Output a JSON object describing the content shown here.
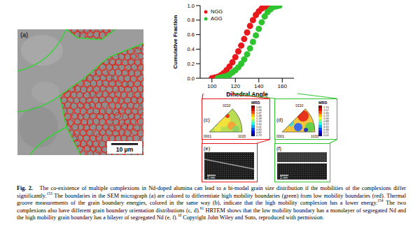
{
  "chart_data": {
    "type": "scatter",
    "x_label": "Dihedral Angle",
    "y_label": "Cumulative Fraction",
    "xlim": [
      90,
      170
    ],
    "xticks": [
      100,
      120,
      140,
      160
    ],
    "ylim": [
      0,
      1
    ],
    "yticks": [
      {
        "value": 0,
        "label": "0.0"
      },
      0.2,
      0.4,
      0.6,
      0.8,
      {
        "value": 1,
        "label": "1.0"
      }
    ],
    "grid": false,
    "legend": "upper left",
    "marker": "circle",
    "series": [
      {
        "name": "NGG",
        "color": "#e8191c",
        "x": [
          100,
          102.5,
          105,
          107.5,
          110,
          112.5,
          115,
          117.5,
          120,
          122.5,
          125,
          127.5,
          130,
          132.5,
          135,
          137.5,
          140,
          142.5,
          145,
          147.5,
          150
        ],
        "values": [
          0.0,
          0.01,
          0.02,
          0.04,
          0.07,
          0.11,
          0.16,
          0.22,
          0.29,
          0.37,
          0.45,
          0.54,
          0.63,
          0.72,
          0.8,
          0.87,
          0.92,
          0.96,
          0.98,
          0.99,
          1.0
        ]
      },
      {
        "name": "AGG",
        "color": "#2fc42f",
        "x": [
          105,
          107.5,
          110,
          112.5,
          115,
          117.5,
          120,
          122.5,
          125,
          127.5,
          130,
          132.5,
          135,
          137.5,
          140,
          142.5,
          145,
          147.5,
          150,
          152.5,
          155,
          157.5
        ],
        "values": [
          0.0,
          0.01,
          0.02,
          0.03,
          0.05,
          0.08,
          0.11,
          0.15,
          0.2,
          0.26,
          0.33,
          0.41,
          0.5,
          0.59,
          0.68,
          0.77,
          0.85,
          0.91,
          0.95,
          0.98,
          0.99,
          1.0
        ]
      }
    ]
  },
  "panels": {
    "a": {
      "label": "(a)",
      "scale_bar": "10 μm"
    },
    "c": {
      "label": "(c)",
      "colorbar_title": "MRD",
      "colorbar_ticks": [
        "1.65",
        "1.56",
        "1.47",
        "1.38",
        "1.28",
        "1.19",
        "1.10",
        "1.01",
        "0.92",
        "0.82",
        "0.73"
      ],
      "poles": {
        "top": "01̄10",
        "origin": "0001",
        "right": "101̄0"
      }
    },
    "d": {
      "label": "(d)",
      "colorbar_title": "MRD",
      "colorbar_ticks": [
        "1.74",
        "1.57",
        "1.40",
        "1.23",
        "1.06",
        "0.89",
        "0.72",
        "0.55",
        "0.38",
        "0.21",
        "0.02"
      ],
      "poles": {
        "top": "01̄10",
        "origin": "0001",
        "right": "101̄0"
      }
    },
    "e": {
      "label": "(e)",
      "scale_bar": "2 nm"
    },
    "f": {
      "label": "(f)",
      "scale_bar": "2 nm"
    }
  },
  "caption": {
    "label": "Fig. 2.",
    "segments": [
      {
        "text": "The co-existence of multiple complexions in Nd-doped alumina can lead to a bi-modal grain size distribution if the mobilities of the complexions differ significantly."
      },
      {
        "sup": "153"
      },
      {
        "text": " The boundaries in the SEM micrograph (a) are colored to differentiate high mobility boundaries (green) from low mobility boundaries (red). Thermal groove measurements of the grain boundary energies, colored in the same way (b), indicate that the high mobility complexion has a lower energy."
      },
      {
        "sup": "154"
      },
      {
        "text": " The two complexions also have different grain boundary orientation distributions (c, d)."
      },
      {
        "sup": "61"
      },
      {
        "text": " HRTEM shows that the low mobility boundary has a monolayer of segregated Nd and the high mobility grain boundary has a bilayer of segregated Nd (e, f)."
      },
      {
        "sup": "10"
      },
      {
        "text": " Copyright John Wiley and Sons, reproduced with permission."
      }
    ]
  }
}
